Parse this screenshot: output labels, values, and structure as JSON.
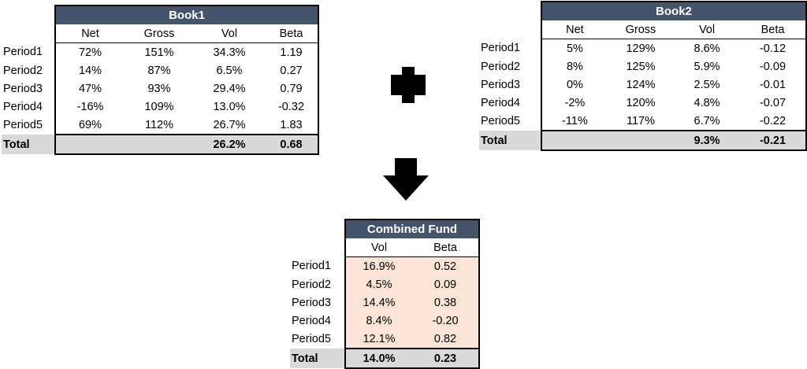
{
  "book1": {
    "title": "Book1",
    "headers": [
      "Net",
      "Gross",
      "Vol",
      "Beta"
    ],
    "rows": [
      {
        "label": "Period1",
        "values": [
          "72%",
          "151%",
          "34.3%",
          "1.19"
        ]
      },
      {
        "label": "Period2",
        "values": [
          "14%",
          "87%",
          "6.5%",
          "0.27"
        ]
      },
      {
        "label": "Period3",
        "values": [
          "47%",
          "93%",
          "29.4%",
          "0.79"
        ]
      },
      {
        "label": "Period4",
        "values": [
          "-16%",
          "109%",
          "13.0%",
          "-0.32"
        ]
      },
      {
        "label": "Period5",
        "values": [
          "69%",
          "112%",
          "26.7%",
          "1.83"
        ]
      }
    ],
    "total": {
      "label": "Total",
      "values": [
        "",
        "",
        "26.2%",
        "0.68"
      ]
    }
  },
  "book2": {
    "title": "Book2",
    "headers": [
      "Net",
      "Gross",
      "Vol",
      "Beta"
    ],
    "rows": [
      {
        "label": "Period1",
        "values": [
          "5%",
          "129%",
          "8.6%",
          "-0.12"
        ]
      },
      {
        "label": "Period2",
        "values": [
          "8%",
          "125%",
          "5.9%",
          "-0.09"
        ]
      },
      {
        "label": "Period3",
        "values": [
          "0%",
          "124%",
          "2.5%",
          "-0.01"
        ]
      },
      {
        "label": "Period4",
        "values": [
          "-2%",
          "120%",
          "4.8%",
          "-0.07"
        ]
      },
      {
        "label": "Period5",
        "values": [
          "-11%",
          "117%",
          "6.7%",
          "-0.22"
        ]
      }
    ],
    "total": {
      "label": "Total",
      "values": [
        "",
        "",
        "9.3%",
        "-0.21"
      ]
    }
  },
  "combined": {
    "title": "Combined Fund",
    "headers": [
      "Vol",
      "Beta"
    ],
    "rows": [
      {
        "label": "Period1",
        "values": [
          "16.9%",
          "0.52"
        ]
      },
      {
        "label": "Period2",
        "values": [
          "4.5%",
          "0.09"
        ]
      },
      {
        "label": "Period3",
        "values": [
          "14.4%",
          "0.38"
        ]
      },
      {
        "label": "Period4",
        "values": [
          "8.4%",
          "-0.20"
        ]
      },
      {
        "label": "Period5",
        "values": [
          "12.1%",
          "0.82"
        ]
      }
    ],
    "total": {
      "label": "Total",
      "values": [
        "14.0%",
        "0.23"
      ]
    }
  },
  "icons": {
    "plus": "plus-icon",
    "arrow": "arrow-down-icon"
  },
  "colors": {
    "title_bg": "#44546a",
    "total_bg": "#d9d9d9",
    "combined_bg": "#fce4d6"
  }
}
